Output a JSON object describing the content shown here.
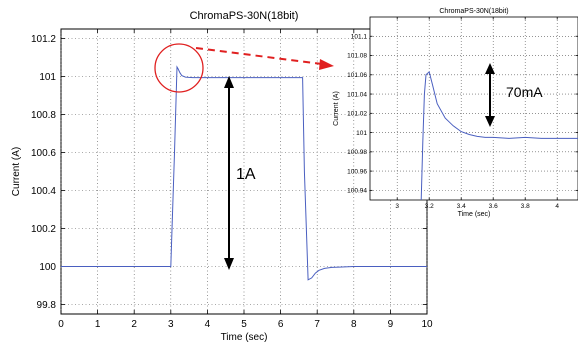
{
  "chart_data": [
    {
      "type": "line",
      "title": "ChromaPS-30N(18bit)",
      "xlabel": "Time (sec)",
      "ylabel": "Current (A)",
      "xlim": [
        0,
        10
      ],
      "ylim": [
        99.75,
        101.25
      ],
      "xticks": [
        "0",
        "1",
        "2",
        "3",
        "4",
        "5",
        "6",
        "7",
        "8",
        "9",
        "10"
      ],
      "yticks": [
        "99.8",
        "100",
        "100.2",
        "100.4",
        "100.6",
        "100.8",
        "101",
        "101.2"
      ],
      "grid": true,
      "series": [
        {
          "color": "#4a5fc0",
          "x": [
            0,
            3.0,
            3.1,
            3.17,
            3.2,
            3.25,
            3.3,
            3.4,
            3.5,
            3.6,
            3.8,
            4.0,
            5.0,
            6.0,
            6.6,
            6.65,
            6.75,
            6.85,
            6.95,
            7.05,
            7.2,
            7.4,
            7.6,
            8.0,
            10
          ],
          "y": [
            100.0,
            100.0,
            100.6,
            101.05,
            101.04,
            101.02,
            101.005,
            100.997,
            100.995,
            100.994,
            100.994,
            100.994,
            100.994,
            100.994,
            100.994,
            100.5,
            99.93,
            99.94,
            99.965,
            99.98,
            99.99,
            99.995,
            99.997,
            100.0,
            100.0
          ]
        }
      ],
      "annotations": [
        "1A"
      ]
    },
    {
      "type": "line",
      "title": "ChromaPS-30N(18bit)",
      "xlabel": "Time (sec)",
      "ylabel": "Current (A)",
      "xlim": [
        2.83,
        4.13
      ],
      "ylim": [
        100.93,
        101.12
      ],
      "xticks": [
        "3",
        "3.2",
        "3.4",
        "3.6",
        "3.8",
        "4"
      ],
      "yticks": [
        "100.94",
        "100.96",
        "100.98",
        "101",
        "101.02",
        "101.04",
        "101.06",
        "101.08",
        "101.1"
      ],
      "grid": true,
      "series": [
        {
          "color": "#4a5fc0",
          "x": [
            3.15,
            3.16,
            3.17,
            3.18,
            3.2,
            3.22,
            3.25,
            3.3,
            3.35,
            3.4,
            3.45,
            3.5,
            3.55,
            3.6,
            3.7,
            3.8,
            3.9,
            4.0,
            4.13
          ],
          "y": [
            100.93,
            100.99,
            101.04,
            101.06,
            101.063,
            101.05,
            101.03,
            101.015,
            101.007,
            101.001,
            100.998,
            100.996,
            100.995,
            100.995,
            100.994,
            100.995,
            100.994,
            100.994,
            100.994
          ]
        }
      ],
      "annotations": [
        "70mA"
      ]
    }
  ]
}
